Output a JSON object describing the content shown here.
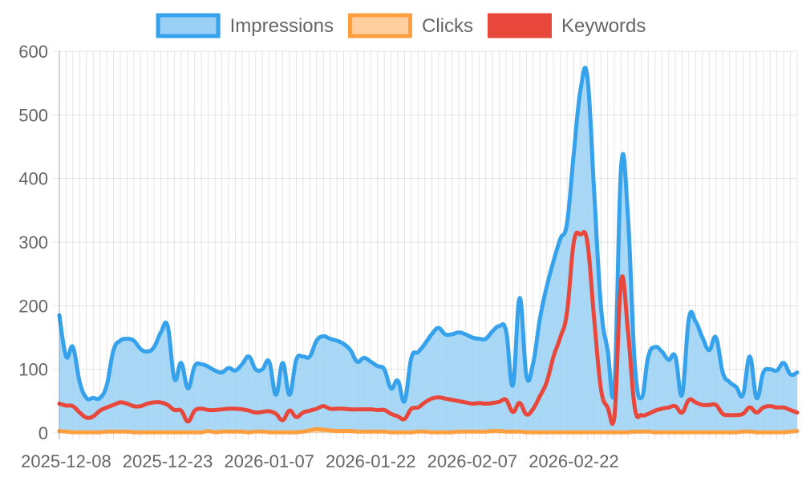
{
  "chart_data": {
    "type": "line",
    "title": "",
    "xlabel": "",
    "ylabel": "",
    "ylim": [
      0,
      600
    ],
    "yticks": [
      0,
      100,
      200,
      300,
      400,
      500,
      600
    ],
    "xtick_labels": [
      "2025-12-08",
      "2025-12-23",
      "2026-01-07",
      "2026-01-22",
      "2026-02-07",
      "2026-02-22"
    ],
    "x_start": "2025-12-07",
    "grid": true,
    "legend_position": "top",
    "series": [
      {
        "name": "Impressions",
        "color": "#36a2eb",
        "fill": "#9ad0f5",
        "filled": true,
        "values": [
          185,
          120,
          135,
          80,
          55,
          55,
          55,
          75,
          130,
          145,
          148,
          145,
          132,
          128,
          135,
          158,
          168,
          85,
          110,
          70,
          105,
          108,
          104,
          98,
          95,
          102,
          98,
          108,
          120,
          100,
          100,
          112,
          60,
          110,
          60,
          115,
          120,
          120,
          145,
          152,
          148,
          145,
          140,
          130,
          112,
          118,
          112,
          105,
          100,
          70,
          82,
          50,
          118,
          127,
          140,
          155,
          165,
          155,
          155,
          158,
          155,
          150,
          148,
          148,
          160,
          168,
          160,
          75,
          212,
          90,
          110,
          180,
          230,
          270,
          305,
          330,
          440,
          540,
          560,
          380,
          200,
          130,
          75,
          420,
          340,
          110,
          55,
          120,
          135,
          128,
          115,
          120,
          60,
          180,
          175,
          150,
          130,
          150,
          95,
          80,
          72,
          60,
          120,
          55,
          95,
          100,
          98,
          110,
          92,
          95
        ]
      },
      {
        "name": "Clicks",
        "color": "#ff9f40",
        "fill": "#ffcf9f",
        "filled": true,
        "values": [
          3,
          2,
          1,
          1,
          1,
          1,
          1,
          2,
          2,
          2,
          2,
          1,
          1,
          1,
          1,
          1,
          1,
          1,
          1,
          1,
          1,
          1,
          3,
          1,
          2,
          2,
          2,
          2,
          1,
          2,
          2,
          1,
          1,
          1,
          1,
          1,
          2,
          4,
          6,
          5,
          4,
          3,
          3,
          3,
          2,
          2,
          2,
          2,
          2,
          1,
          1,
          1,
          1,
          2,
          2,
          1,
          1,
          1,
          1,
          2,
          2,
          2,
          2,
          2,
          3,
          3,
          2,
          2,
          2,
          1,
          1,
          1,
          1,
          1,
          1,
          1,
          1,
          1,
          1,
          1,
          1,
          1,
          1,
          1,
          1,
          2,
          2,
          2,
          1,
          1,
          1,
          1,
          1,
          1,
          1,
          1,
          1,
          1,
          1,
          1,
          1,
          2,
          2,
          1,
          1,
          1,
          1,
          1,
          2,
          3
        ]
      },
      {
        "name": "Keywords",
        "color": "#e8483c",
        "filled": false,
        "values": [
          46,
          43,
          42,
          32,
          24,
          26,
          35,
          40,
          44,
          48,
          46,
          42,
          42,
          46,
          48,
          48,
          44,
          36,
          35,
          18,
          35,
          38,
          36,
          36,
          37,
          38,
          38,
          37,
          35,
          32,
          33,
          34,
          30,
          20,
          35,
          25,
          32,
          35,
          38,
          42,
          38,
          38,
          38,
          37,
          37,
          37,
          37,
          36,
          36,
          30,
          26,
          22,
          38,
          40,
          48,
          54,
          56,
          54,
          52,
          50,
          48,
          46,
          47,
          46,
          47,
          49,
          52,
          33,
          47,
          29,
          38,
          58,
          80,
          120,
          150,
          190,
          300,
          312,
          300,
          180,
          70,
          40,
          25,
          240,
          160,
          40,
          28,
          30,
          35,
          38,
          40,
          42,
          32,
          52,
          48,
          44,
          44,
          44,
          30,
          28,
          28,
          30,
          40,
          32,
          40,
          42,
          40,
          40,
          36,
          32
        ]
      }
    ]
  }
}
